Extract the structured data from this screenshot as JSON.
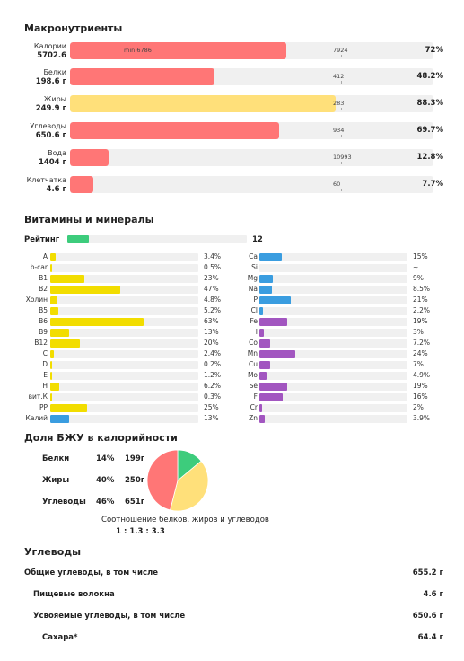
{
  "sections": {
    "macro_title": "Макронутриенты",
    "vitamins_title": "Витамины и минералы",
    "bzu_title": "Доля БЖУ в калорийности",
    "carbs_title": "Углеводы"
  },
  "colors": {
    "red": "#ff7676",
    "yellow": "#ffe07a",
    "green": "#3dcc7c",
    "vit_yellow": "#f2dd00",
    "min_blue": "#3a9de0",
    "min_purple": "#a256c0",
    "track": "#f0f0f0"
  },
  "macros": [
    {
      "name": "Калории",
      "value": "5702.6",
      "fill_pct": 72,
      "color": "#ff7676",
      "min_label": "min 6786",
      "target": "7924",
      "percent": "72%"
    },
    {
      "name": "Белки",
      "value": "198.6 г",
      "fill_pct": 48.2,
      "color": "#ff7676",
      "target": "412",
      "percent": "48.2%"
    },
    {
      "name": "Жиры",
      "value": "249.9 г",
      "fill_pct": 88.3,
      "color": "#ffe07a",
      "target": "283",
      "percent": "88.3%"
    },
    {
      "name": "Углеводы",
      "value": "650.6 г",
      "fill_pct": 69.7,
      "color": "#ff7676",
      "target": "934",
      "percent": "69.7%"
    },
    {
      "name": "Вода",
      "value": "1404 г",
      "fill_pct": 12.8,
      "color": "#ff7676",
      "target": "10993",
      "percent": "12.8%"
    },
    {
      "name": "Клетчатка",
      "value": "4.6 г",
      "fill_pct": 7.7,
      "color": "#ff7676",
      "target": "60",
      "percent": "7.7%"
    }
  ],
  "rating": {
    "label": "Рейтинг",
    "value": "12",
    "fill_pct": 12
  },
  "vitamins": [
    {
      "name": "A",
      "pct": 3.4,
      "label": "3.4%"
    },
    {
      "name": "b-car",
      "pct": 0.5,
      "label": "0.5%"
    },
    {
      "name": "B1",
      "pct": 23,
      "label": "23%"
    },
    {
      "name": "B2",
      "pct": 47,
      "label": "47%"
    },
    {
      "name": "Холин",
      "pct": 4.8,
      "label": "4.8%"
    },
    {
      "name": "B5",
      "pct": 5.2,
      "label": "5.2%"
    },
    {
      "name": "B6",
      "pct": 63,
      "label": "63%"
    },
    {
      "name": "B9",
      "pct": 13,
      "label": "13%"
    },
    {
      "name": "B12",
      "pct": 20,
      "label": "20%"
    },
    {
      "name": "C",
      "pct": 2.4,
      "label": "2.4%"
    },
    {
      "name": "D",
      "pct": 0.2,
      "label": "0.2%"
    },
    {
      "name": "E",
      "pct": 1.2,
      "label": "1.2%"
    },
    {
      "name": "H",
      "pct": 6.2,
      "label": "6.2%"
    },
    {
      "name": "вит.К",
      "pct": 0.3,
      "label": "0.3%"
    },
    {
      "name": "PP",
      "pct": 25,
      "label": "25%"
    },
    {
      "name": "Калий",
      "pct": 13,
      "label": "13%",
      "mineral": true
    }
  ],
  "minerals": [
    {
      "name": "Ca",
      "pct": 15,
      "label": "15%",
      "color": "#3a9de0"
    },
    {
      "name": "Si",
      "pct": 0,
      "label": "~",
      "color": "#3a9de0"
    },
    {
      "name": "Mg",
      "pct": 9,
      "label": "9%",
      "color": "#3a9de0"
    },
    {
      "name": "Na",
      "pct": 8.5,
      "label": "8.5%",
      "color": "#3a9de0"
    },
    {
      "name": "P",
      "pct": 21,
      "label": "21%",
      "color": "#3a9de0"
    },
    {
      "name": "Cl",
      "pct": 2.2,
      "label": "2.2%",
      "color": "#3a9de0"
    },
    {
      "name": "Fe",
      "pct": 19,
      "label": "19%",
      "color": "#a256c0"
    },
    {
      "name": "I",
      "pct": 3,
      "label": "3%",
      "color": "#a256c0"
    },
    {
      "name": "Co",
      "pct": 7.2,
      "label": "7.2%",
      "color": "#a256c0"
    },
    {
      "name": "Mn",
      "pct": 24,
      "label": "24%",
      "color": "#a256c0"
    },
    {
      "name": "Cu",
      "pct": 7,
      "label": "7%",
      "color": "#a256c0"
    },
    {
      "name": "Mo",
      "pct": 4.9,
      "label": "4.9%",
      "color": "#a256c0"
    },
    {
      "name": "Se",
      "pct": 19,
      "label": "19%",
      "color": "#a256c0"
    },
    {
      "name": "F",
      "pct": 16,
      "label": "16%",
      "color": "#a256c0"
    },
    {
      "name": "Cr",
      "pct": 2,
      "label": "2%",
      "color": "#a256c0"
    },
    {
      "name": "Zn",
      "pct": 3.9,
      "label": "3.9%",
      "color": "#a256c0"
    }
  ],
  "bzu": {
    "rows": [
      {
        "name": "Белки",
        "pct": "14%",
        "grams": "199г"
      },
      {
        "name": "Жиры",
        "pct": "40%",
        "grams": "250г"
      },
      {
        "name": "Углеводы",
        "pct": "46%",
        "grams": "651г"
      }
    ],
    "pie": [
      {
        "name": "Белки",
        "value": 14,
        "color": "#3dcc7c"
      },
      {
        "name": "Жиры",
        "value": 40,
        "color": "#ffe07a"
      },
      {
        "name": "Углеводы",
        "value": 46,
        "color": "#ff7676"
      }
    ],
    "caption": "Соотношение белков, жиров и углеводов",
    "ratio": "1 : 1.3 : 3.3"
  },
  "carbs": [
    {
      "name": "Общие углеводы, в том числе",
      "value": "655.2 г",
      "indent": 0
    },
    {
      "name": "Пищевые волокна",
      "value": "4.6 г",
      "indent": 10
    },
    {
      "name": "Усвояемые углеводы, в том числе",
      "value": "650.6 г",
      "indent": 10
    },
    {
      "name": "Сахара*",
      "value": "64.4 г",
      "indent": 20
    }
  ]
}
